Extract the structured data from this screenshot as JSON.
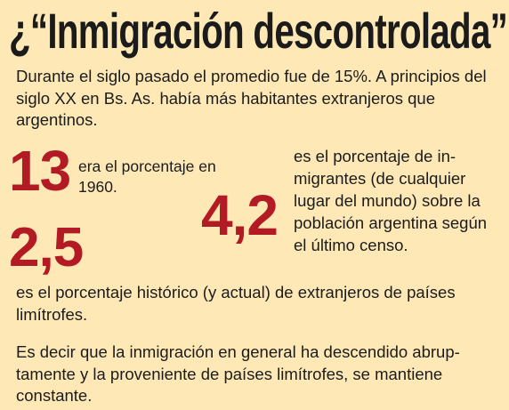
{
  "title": "¿“Inmigración descontrolada”?",
  "intro": "Durante el siglo pasado el promedio fue de 15%. A principios del siglo XX en Bs. As. había más habitantes extranjeros que argentinos.",
  "stats": [
    {
      "value": "13",
      "text": "era el porcentaje en 1960."
    },
    {
      "value": "4,2",
      "text": "es el porcentaje de in-migrantes (de cualquier lugar del mundo) sobre la población argentina según el último censo."
    },
    {
      "value": "2,5",
      "text": "es el porcentaje histórico (y actual) de extranjeros de países limítrofes."
    }
  ],
  "conclusion": "Es decir que la inmigración en general ha descendido abrup-tamente y la proveniente de países limítrofes, se mantiene constante.",
  "colors": {
    "background": "#fde8b6",
    "accent": "#b21a24",
    "text": "#1c1c1c"
  }
}
